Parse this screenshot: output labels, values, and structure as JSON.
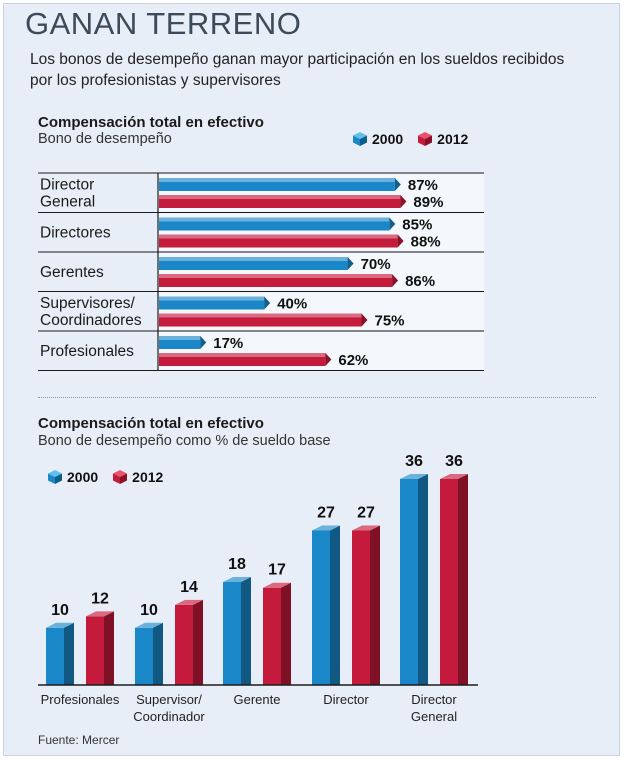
{
  "header": {
    "title": "GANAN TERRENO",
    "subtitle": "Los bonos de desempeño ganan mayor participación en los sueldos recibidos por los profesionistas y supervisores"
  },
  "colors": {
    "c2000": "#1a88c8",
    "c2012": "#c41a3c",
    "panel": "#e8eef7"
  },
  "section1": {
    "title": "Compensación total en efectivo",
    "subtitle": "Bono de desempeño",
    "legend": [
      "2000",
      "2012"
    ]
  },
  "section2": {
    "title": "Compensación total en efectivo",
    "subtitle": "Bono de desempeño como % de sueldo base",
    "legend": [
      "2000",
      "2012"
    ]
  },
  "source": "Fuente: Mercer",
  "chart_data": [
    {
      "type": "bar",
      "orientation": "horizontal",
      "title": "Compensación total en efectivo",
      "subtitle": "Bono de desempeño",
      "categories": [
        [
          "Director",
          "General"
        ],
        [
          "Directores"
        ],
        [
          "Gerentes"
        ],
        [
          "Supervisores/",
          "Coordinadores"
        ],
        [
          "Profesionales"
        ]
      ],
      "series": [
        {
          "name": "2000",
          "values": [
            87,
            85,
            70,
            40,
            17
          ],
          "labels": [
            "87%",
            "85%",
            "70%",
            "40%",
            "17%"
          ]
        },
        {
          "name": "2012",
          "values": [
            89,
            88,
            86,
            75,
            62
          ],
          "labels": [
            "89%",
            "88%",
            "86%",
            "75%",
            "62%"
          ]
        }
      ],
      "xlim": [
        0,
        100
      ]
    },
    {
      "type": "bar",
      "orientation": "vertical",
      "title": "Compensación total en efectivo",
      "subtitle": "Bono de desempeño como % de sueldo base",
      "categories": [
        [
          "Profesionales"
        ],
        [
          "Supervisor/",
          "Coordinador"
        ],
        [
          "Gerente"
        ],
        [
          "Director"
        ],
        [
          "Director",
          "General"
        ]
      ],
      "series": [
        {
          "name": "2000",
          "values": [
            10,
            10,
            18,
            27,
            36
          ]
        },
        {
          "name": "2012",
          "values": [
            12,
            14,
            17,
            27,
            36
          ]
        }
      ],
      "ylim": [
        0,
        40
      ]
    }
  ]
}
